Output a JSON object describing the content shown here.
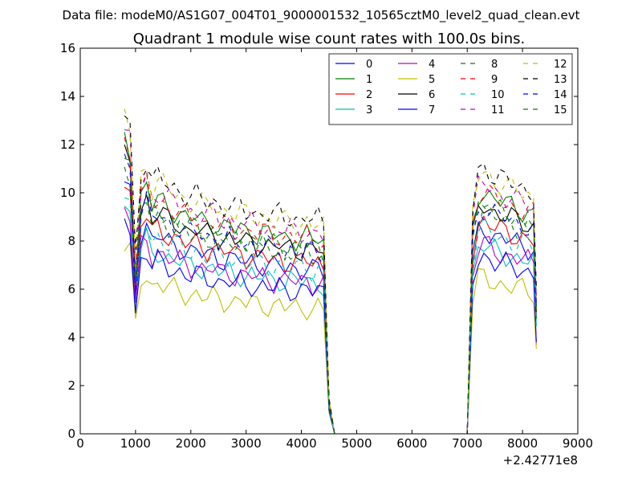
{
  "chart_data": {
    "type": "line",
    "suptitle": "Data file: modeM0/AS1G07_004T01_9000001532_10565cztM0_level2_quad_clean.evt",
    "title": "Quadrant 1 module wise count rates with 100.0s bins.",
    "xlabel": "",
    "ylabel": "",
    "x_offset_label": "+2.42771e8",
    "xlim": [
      0,
      9000
    ],
    "ylim": [
      0,
      16
    ],
    "x_ticks": [
      0,
      1000,
      2000,
      3000,
      4000,
      5000,
      6000,
      7000,
      8000,
      9000
    ],
    "y_ticks": [
      0,
      2,
      4,
      6,
      8,
      10,
      12,
      14,
      16
    ],
    "legend": {
      "placement": "top-right",
      "columns": 4
    },
    "grid": false,
    "series": [
      {
        "name": "0",
        "color": "#0000ff",
        "dash": "solid"
      },
      {
        "name": "1",
        "color": "#008000",
        "dash": "solid"
      },
      {
        "name": "2",
        "color": "#ff0000",
        "dash": "solid"
      },
      {
        "name": "3",
        "color": "#00bfbf",
        "dash": "solid"
      },
      {
        "name": "4",
        "color": "#bf00bf",
        "dash": "solid"
      },
      {
        "name": "5",
        "color": "#bfbf00",
        "dash": "solid"
      },
      {
        "name": "6",
        "color": "#000000",
        "dash": "solid"
      },
      {
        "name": "7",
        "color": "#0000ff",
        "dash": "solid"
      },
      {
        "name": "8",
        "color": "#008000",
        "dash": "dashed"
      },
      {
        "name": "9",
        "color": "#ff0000",
        "dash": "dashed"
      },
      {
        "name": "10",
        "color": "#00bfbf",
        "dash": "dashed"
      },
      {
        "name": "11",
        "color": "#bf00bf",
        "dash": "dashed"
      },
      {
        "name": "12",
        "color": "#bfbf00",
        "dash": "dashed"
      },
      {
        "name": "13",
        "color": "#000000",
        "dash": "dashed"
      },
      {
        "name": "14",
        "color": "#0000ff",
        "dash": "dashed"
      },
      {
        "name": "15",
        "color": "#008000",
        "dash": "dashed"
      }
    ],
    "profile": {
      "x": [
        800,
        900,
        1000,
        1100,
        1200,
        1300,
        1400,
        1500,
        1600,
        1700,
        1800,
        1900,
        2000,
        2100,
        2200,
        2300,
        2400,
        2500,
        2600,
        2700,
        2800,
        2900,
        3000,
        3100,
        3200,
        3300,
        3400,
        3500,
        3600,
        3700,
        3800,
        3900,
        4000,
        4100,
        4200,
        4300,
        4400,
        4500,
        4600,
        4700,
        4800,
        4900,
        5000,
        5100,
        5200,
        5300,
        5400,
        5500,
        5600,
        5700,
        5800,
        5900,
        6000,
        6100,
        6200,
        6300,
        6400,
        6500,
        6600,
        6700,
        6800,
        6900,
        7000,
        7100,
        7200,
        7300,
        7400,
        7500,
        7600,
        7700,
        7800,
        7900,
        8000,
        8100,
        8200,
        8250
      ],
      "shape": [
        1.35,
        1.3,
        0.75,
        1.1,
        1.15,
        1.05,
        1.08,
        1.06,
        1.04,
        1.03,
        1.02,
        1.0,
        0.99,
        1.0,
        0.98,
        0.97,
        0.98,
        0.96,
        0.95,
        0.96,
        0.94,
        0.95,
        0.93,
        0.94,
        0.92,
        0.93,
        0.92,
        0.91,
        0.92,
        0.9,
        0.91,
        0.9,
        0.9,
        0.91,
        0.89,
        0.9,
        0.88,
        0.15,
        0.0,
        0.0,
        0.0,
        0.0,
        0.0,
        0.0,
        0.0,
        0.0,
        0.0,
        0.0,
        0.0,
        0.0,
        0.0,
        0.0,
        0.0,
        0.0,
        0.0,
        0.0,
        0.0,
        0.0,
        0.0,
        0.0,
        0.0,
        0.0,
        0.0,
        0.95,
        1.1,
        1.12,
        1.1,
        1.08,
        1.07,
        1.06,
        1.05,
        1.04,
        1.03,
        1.02,
        1.01,
        0.6
      ]
    },
    "series_levels": [
      7.6,
      9.0,
      7.9,
      7.0,
      7.0,
      5.8,
      8.5,
      6.6,
      8.6,
      9.0,
      7.6,
      9.3,
      9.7,
      9.9,
      8.4,
      8.3
    ]
  }
}
